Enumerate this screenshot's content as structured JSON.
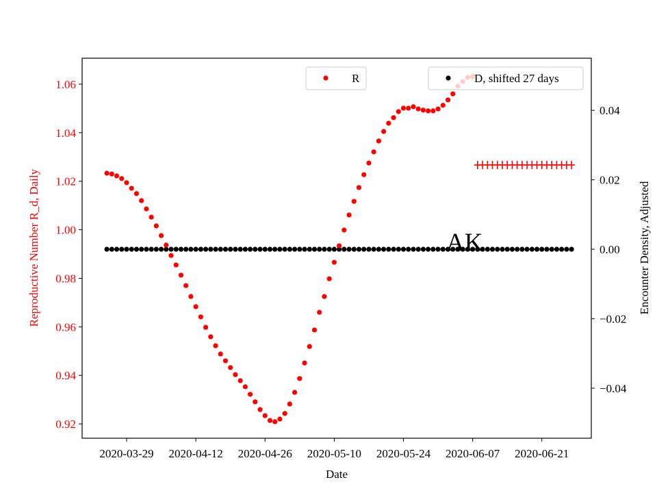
{
  "chart_data": {
    "type": "scatter",
    "title": "",
    "annotation": "AK",
    "xlabel": "Date",
    "ylabel_left": "Reproductive Number R_d, Daily",
    "ylabel_right": "Encounter Density, Adjusted",
    "xlim": [
      "2020-03-20",
      "2020-07-01"
    ],
    "ylim_left": [
      0.9141,
      1.0707
    ],
    "ylim_right": [
      -0.0544,
      0.055
    ],
    "x_ticks": [
      "2020-03-29",
      "2020-04-12",
      "2020-04-26",
      "2020-05-10",
      "2020-05-24",
      "2020-06-07",
      "2020-06-21"
    ],
    "y_ticks_left": [
      "0.92",
      "0.94",
      "0.96",
      "0.98",
      "1.00",
      "1.02",
      "1.04",
      "1.06"
    ],
    "y_ticks_right": [
      "−0.04",
      "−0.02",
      "0.00",
      "0.02",
      "0.04"
    ],
    "y_tick_values_left": [
      0.92,
      0.94,
      0.96,
      0.98,
      1.0,
      1.02,
      1.04,
      1.06
    ],
    "y_tick_values_right": [
      -0.04,
      -0.02,
      0.0,
      0.02,
      0.04
    ],
    "grid": false,
    "legends": [
      {
        "label": "R",
        "color": "#ff0000",
        "marker": "dot",
        "placement": "upper-center"
      },
      {
        "label": "D, shifted 27 days",
        "color": "#000000",
        "marker": "dot",
        "placement": "upper-right"
      }
    ],
    "series": [
      {
        "name": "R",
        "axis": "left",
        "marker": "dot",
        "color": "#ff0000",
        "x": [
          "2020-03-25",
          "2020-03-26",
          "2020-03-27",
          "2020-03-28",
          "2020-03-29",
          "2020-03-30",
          "2020-03-31",
          "2020-04-01",
          "2020-04-02",
          "2020-04-03",
          "2020-04-04",
          "2020-04-05",
          "2020-04-06",
          "2020-04-07",
          "2020-04-08",
          "2020-04-09",
          "2020-04-10",
          "2020-04-11",
          "2020-04-12",
          "2020-04-13",
          "2020-04-14",
          "2020-04-15",
          "2020-04-16",
          "2020-04-17",
          "2020-04-18",
          "2020-04-19",
          "2020-04-20",
          "2020-04-21",
          "2020-04-22",
          "2020-04-23",
          "2020-04-24",
          "2020-04-25",
          "2020-04-26",
          "2020-04-27",
          "2020-04-28",
          "2020-04-29",
          "2020-04-30",
          "2020-05-01",
          "2020-05-02",
          "2020-05-03",
          "2020-05-04",
          "2020-05-05",
          "2020-05-06",
          "2020-05-07",
          "2020-05-08",
          "2020-05-09",
          "2020-05-10",
          "2020-05-11",
          "2020-05-12",
          "2020-05-13",
          "2020-05-14",
          "2020-05-15",
          "2020-05-16",
          "2020-05-17",
          "2020-05-18",
          "2020-05-19",
          "2020-05-20",
          "2020-05-21",
          "2020-05-22",
          "2020-05-23",
          "2020-05-24",
          "2020-05-25",
          "2020-05-26",
          "2020-05-27",
          "2020-05-28",
          "2020-05-29",
          "2020-05-30",
          "2020-05-31",
          "2020-06-01",
          "2020-06-02",
          "2020-06-03",
          "2020-06-04",
          "2020-06-05",
          "2020-06-06",
          "2020-06-07"
        ],
        "y": [
          1.0233,
          1.023,
          1.0222,
          1.0211,
          1.0194,
          1.0171,
          1.0149,
          1.012,
          1.0086,
          1.0052,
          1.0016,
          0.9976,
          0.9937,
          0.9894,
          0.9855,
          0.9813,
          0.977,
          0.9725,
          0.9683,
          0.9641,
          0.9598,
          0.9559,
          0.9522,
          0.9488,
          0.946,
          0.9432,
          0.9403,
          0.9378,
          0.9353,
          0.9322,
          0.9291,
          0.9259,
          0.9234,
          0.9214,
          0.9209,
          0.922,
          0.9243,
          0.9282,
          0.933,
          0.9387,
          0.9451,
          0.9519,
          0.9587,
          0.966,
          0.9725,
          0.9798,
          0.9866,
          0.9934,
          0.9999,
          1.0061,
          1.0117,
          1.0174,
          1.0227,
          1.0275,
          1.0321,
          1.0366,
          1.0405,
          1.0439,
          1.0462,
          1.0487,
          1.0501,
          1.0501,
          1.0507,
          1.0498,
          1.0493,
          1.049,
          1.049,
          1.0498,
          1.0513,
          1.0535,
          1.056,
          1.0592,
          1.0611,
          1.0628,
          1.0631
        ]
      },
      {
        "axis": "left",
        "marker": "plus",
        "color": "#ff0000",
        "x": [
          "2020-06-08",
          "2020-06-09",
          "2020-06-10",
          "2020-06-11",
          "2020-06-12",
          "2020-06-13",
          "2020-06-14",
          "2020-06-15",
          "2020-06-16",
          "2020-06-17",
          "2020-06-18",
          "2020-06-19",
          "2020-06-20",
          "2020-06-21",
          "2020-06-22",
          "2020-06-23",
          "2020-06-24",
          "2020-06-25",
          "2020-06-26",
          "2020-06-27"
        ],
        "y": [
          1.0267,
          1.0267,
          1.0267,
          1.0267,
          1.0267,
          1.0267,
          1.0267,
          1.0267,
          1.0267,
          1.0267,
          1.0267,
          1.0267,
          1.0267,
          1.0267,
          1.0267,
          1.0267,
          1.0267,
          1.0267,
          1.0267,
          1.0267
        ]
      },
      {
        "name": "D, shifted 27 days",
        "axis": "right",
        "marker": "dot",
        "color": "#000000",
        "x": [
          "2020-03-25",
          "2020-03-26",
          "2020-03-27",
          "2020-03-28",
          "2020-03-29",
          "2020-03-30",
          "2020-03-31",
          "2020-04-01",
          "2020-04-02",
          "2020-04-03",
          "2020-04-04",
          "2020-04-05",
          "2020-04-06",
          "2020-04-07",
          "2020-04-08",
          "2020-04-09",
          "2020-04-10",
          "2020-04-11",
          "2020-04-12",
          "2020-04-13",
          "2020-04-14",
          "2020-04-15",
          "2020-04-16",
          "2020-04-17",
          "2020-04-18",
          "2020-04-19",
          "2020-04-20",
          "2020-04-21",
          "2020-04-22",
          "2020-04-23",
          "2020-04-24",
          "2020-04-25",
          "2020-04-26",
          "2020-04-27",
          "2020-04-28",
          "2020-04-29",
          "2020-04-30",
          "2020-05-01",
          "2020-05-02",
          "2020-05-03",
          "2020-05-04",
          "2020-05-05",
          "2020-05-06",
          "2020-05-07",
          "2020-05-08",
          "2020-05-09",
          "2020-05-10",
          "2020-05-11",
          "2020-05-12",
          "2020-05-13",
          "2020-05-14",
          "2020-05-15",
          "2020-05-16",
          "2020-05-17",
          "2020-05-18",
          "2020-05-19",
          "2020-05-20",
          "2020-05-21",
          "2020-05-22",
          "2020-05-23",
          "2020-05-24",
          "2020-05-25",
          "2020-05-26",
          "2020-05-27",
          "2020-05-28",
          "2020-05-29",
          "2020-05-30",
          "2020-05-31",
          "2020-06-01",
          "2020-06-02",
          "2020-06-03",
          "2020-06-04",
          "2020-06-05",
          "2020-06-06",
          "2020-06-07",
          "2020-06-08",
          "2020-06-09",
          "2020-06-10",
          "2020-06-11",
          "2020-06-12",
          "2020-06-13",
          "2020-06-14",
          "2020-06-15",
          "2020-06-16",
          "2020-06-17",
          "2020-06-18",
          "2020-06-19",
          "2020-06-20",
          "2020-06-21",
          "2020-06-22",
          "2020-06-23",
          "2020-06-24",
          "2020-06-25",
          "2020-06-26",
          "2020-06-27"
        ],
        "y": [
          0,
          0,
          0,
          0,
          0,
          0,
          0,
          0,
          0,
          0,
          0,
          0,
          0,
          0,
          0,
          0,
          0,
          0,
          0,
          0,
          0,
          0,
          0,
          0,
          0,
          0,
          0,
          0,
          0,
          0,
          0,
          0,
          0,
          0,
          0,
          0,
          0,
          0,
          0,
          0,
          0,
          0,
          0,
          0,
          0,
          0,
          0,
          0,
          0,
          0,
          0,
          0,
          0,
          0,
          0,
          0,
          0,
          0,
          0,
          0,
          0,
          0,
          0,
          0,
          0,
          0,
          0,
          0,
          0,
          0,
          0,
          0,
          0,
          0,
          0,
          0,
          0,
          0,
          0,
          0,
          0,
          0,
          0,
          0,
          0,
          0,
          0,
          0,
          0,
          0,
          0,
          0,
          0,
          0,
          0
        ]
      }
    ]
  }
}
